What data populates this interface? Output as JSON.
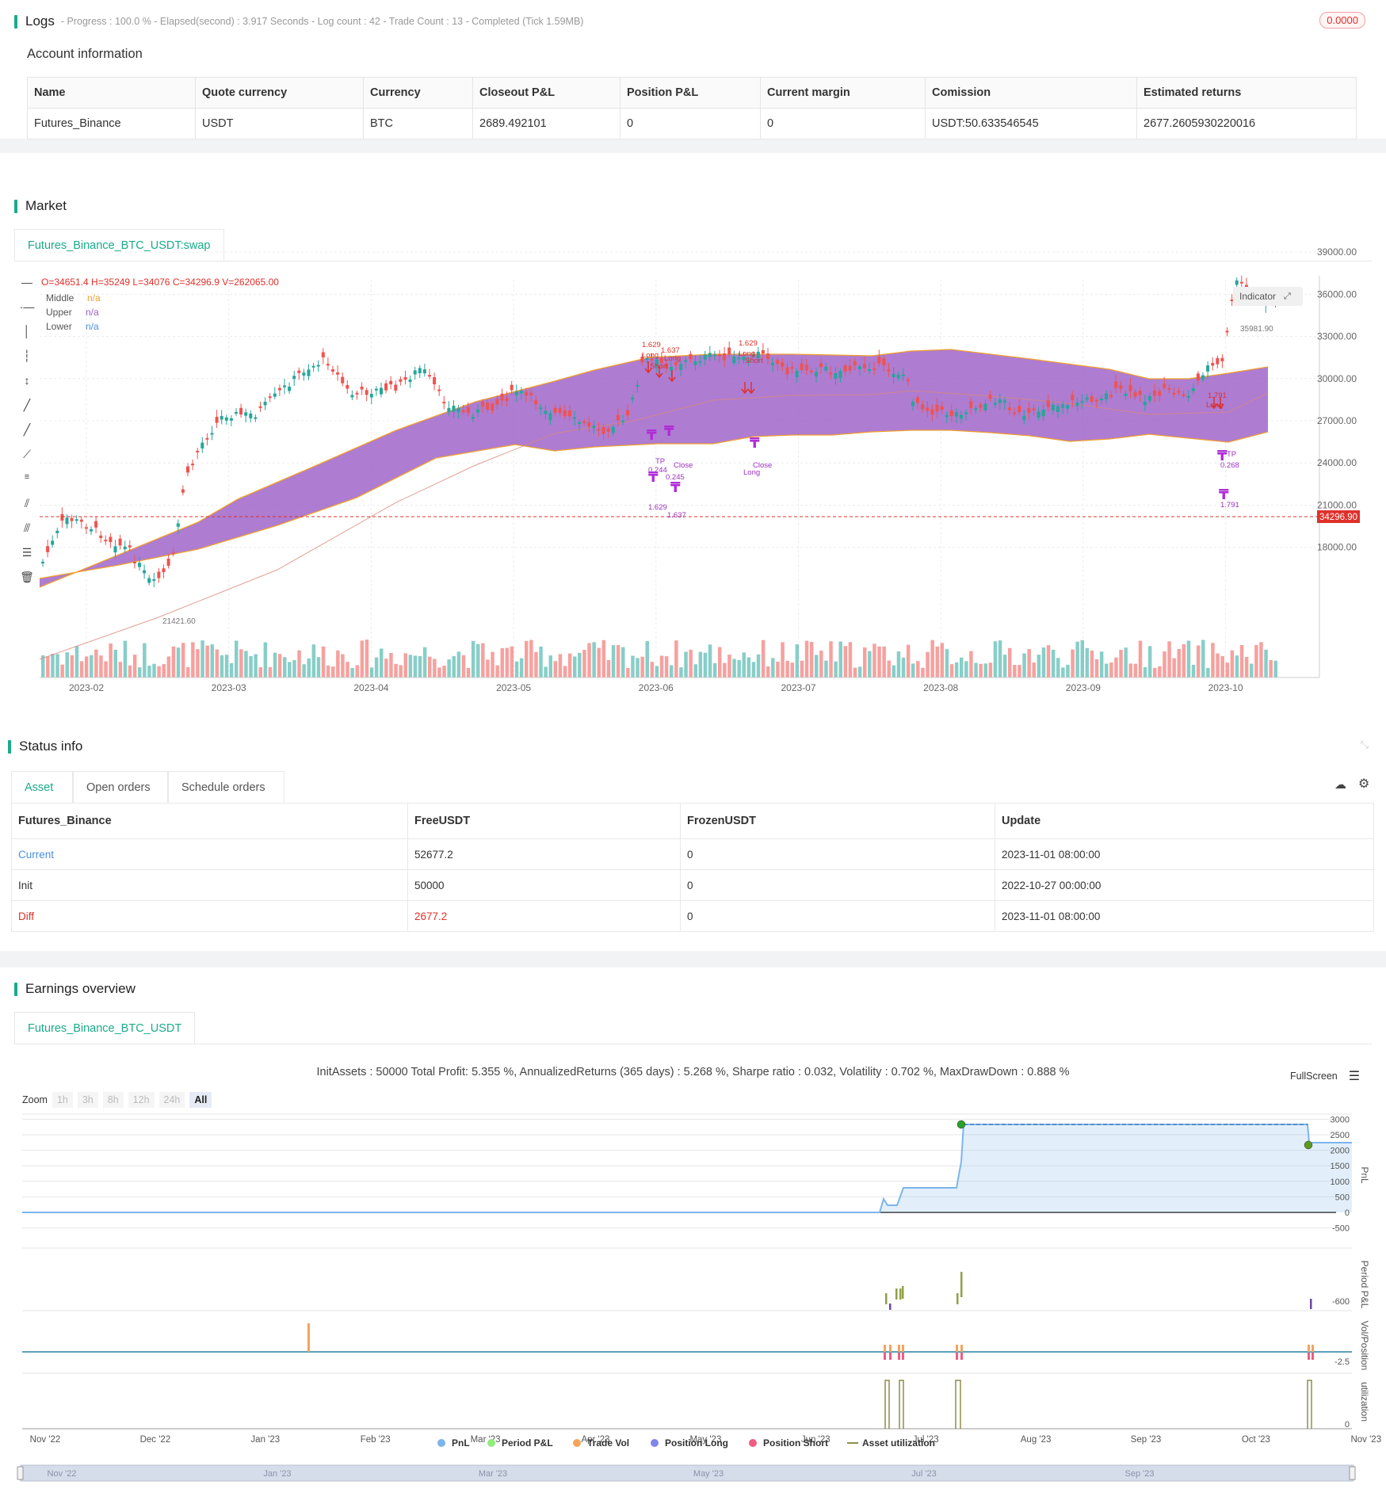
{
  "logs": {
    "title": "Logs",
    "summary": "- Progress : 100.0 % - Elapsed(second) : 3.917  Seconds - Log count : 42 - Trade Count : 13 - Completed (Tick 1.59MB)",
    "badge": "0.0000"
  },
  "account": {
    "title": "Account information",
    "headers": [
      "Name",
      "Quote currency",
      "Currency",
      "Closeout P&L",
      "Position P&L",
      "Current margin",
      "Comission",
      "Estimated returns"
    ],
    "row": [
      "Futures_Binance",
      "USDT",
      "BTC",
      "2689.492101",
      "0",
      "0",
      "USDT:50.633546545",
      "2677.2605930220016"
    ]
  },
  "market": {
    "title": "Market",
    "tab": "Futures_Binance_BTC_USDT:swap",
    "ohlc": "O=34651.4 H=35249 L=34076 C=34296.9 V=262065.00",
    "legend": [
      {
        "name": "Middle",
        "value": "n/a",
        "color": "#f0a030"
      },
      {
        "name": "Upper",
        "value": "n/a",
        "color": "#9c5fc7"
      },
      {
        "name": "Lower",
        "value": "n/a",
        "color": "#4a90e2"
      }
    ],
    "indicator_button": "Indicator",
    "price_axis": [
      "39000.00",
      "36000.00",
      "33000.00",
      "30000.00",
      "27000.00",
      "24000.00",
      "21000.00",
      "18000.00"
    ],
    "time_axis": [
      "2023-02",
      "2023-03",
      "2023-04",
      "2023-05",
      "2023-06",
      "2023-07",
      "2023-08",
      "2023-09",
      "2023-10"
    ],
    "current_price": "34296.90",
    "high_label": "35981.90",
    "low_label": "21421.60",
    "annotations": [
      "1.629",
      "Long",
      "1.637",
      "Long",
      "Short",
      "TP",
      "0.244",
      "0.245",
      "1.629",
      "1.637",
      "Close",
      "1.629",
      "Long",
      "Short",
      "Close",
      "Long",
      "1.791",
      "Long",
      "TP",
      "0.268",
      "1.791"
    ]
  },
  "status": {
    "title": "Status info",
    "tabs": [
      "Asset",
      "Open orders",
      "Schedule orders"
    ],
    "headers": [
      "Futures_Binance",
      "FreeUSDT",
      "FrozenUSDT",
      "Update"
    ],
    "rows": [
      {
        "label": "Current",
        "free": "52677.2",
        "frozen": "0",
        "update": "2023-11-01 08:00:00",
        "color": "#4a90e2"
      },
      {
        "label": "Init",
        "free": "50000",
        "frozen": "0",
        "update": "2022-10-27 00:00:00",
        "color": "#333333"
      },
      {
        "label": "Diff",
        "free": "2677.2",
        "frozen": "0",
        "update": "2023-11-01 08:00:00",
        "color": "#e0302a"
      }
    ]
  },
  "earnings": {
    "title": "Earnings overview",
    "tab": "Futures_Binance_BTC_USDT",
    "summary": "InitAssets : 50000 Total Profit: 5.355 %, AnnualizedReturns (365 days) : 5.268 %, Sharpe ratio : 0.032, Volatility : 0.702 %, MaxDrawDown : 0.888 %",
    "fullscreen": "FullScreen",
    "zoom_label": "Zoom",
    "zoom_options": [
      "1h",
      "3h",
      "8h",
      "12h",
      "24h",
      "All"
    ],
    "pnl_axis": [
      "3000",
      "2500",
      "2000",
      "1500",
      "1000",
      "500",
      "0",
      "-500"
    ],
    "axis_titles": [
      "PnL",
      "Period P&L",
      "Vol/Position",
      "utilization"
    ],
    "period_label": "-600",
    "vol_label": "-2.5",
    "util_label": "0",
    "time_axis": [
      "Nov '22",
      "Dec '22",
      "Jan '23",
      "Feb '23",
      "Mar '23",
      "Apr '23",
      "May '23",
      "Jun '23",
      "Jul '23",
      "Aug '23",
      "Sep '23",
      "Oct '23",
      "Nov '23"
    ],
    "navigator_labels": [
      "Nov '22",
      "Jan '23",
      "Mar '23",
      "May '23",
      "Jul '23",
      "Sep '23"
    ],
    "legend": [
      {
        "name": "PnL",
        "color": "#7cb5ec"
      },
      {
        "name": "Period P&L",
        "color": "#90ed7d"
      },
      {
        "name": "Trade Vol",
        "color": "#f7a35c"
      },
      {
        "name": "Position Long",
        "color": "#8085e9"
      },
      {
        "name": "Position Short",
        "color": "#f15c80"
      },
      {
        "name": "Asset utilization",
        "color": "#8d8d4a"
      }
    ]
  }
}
